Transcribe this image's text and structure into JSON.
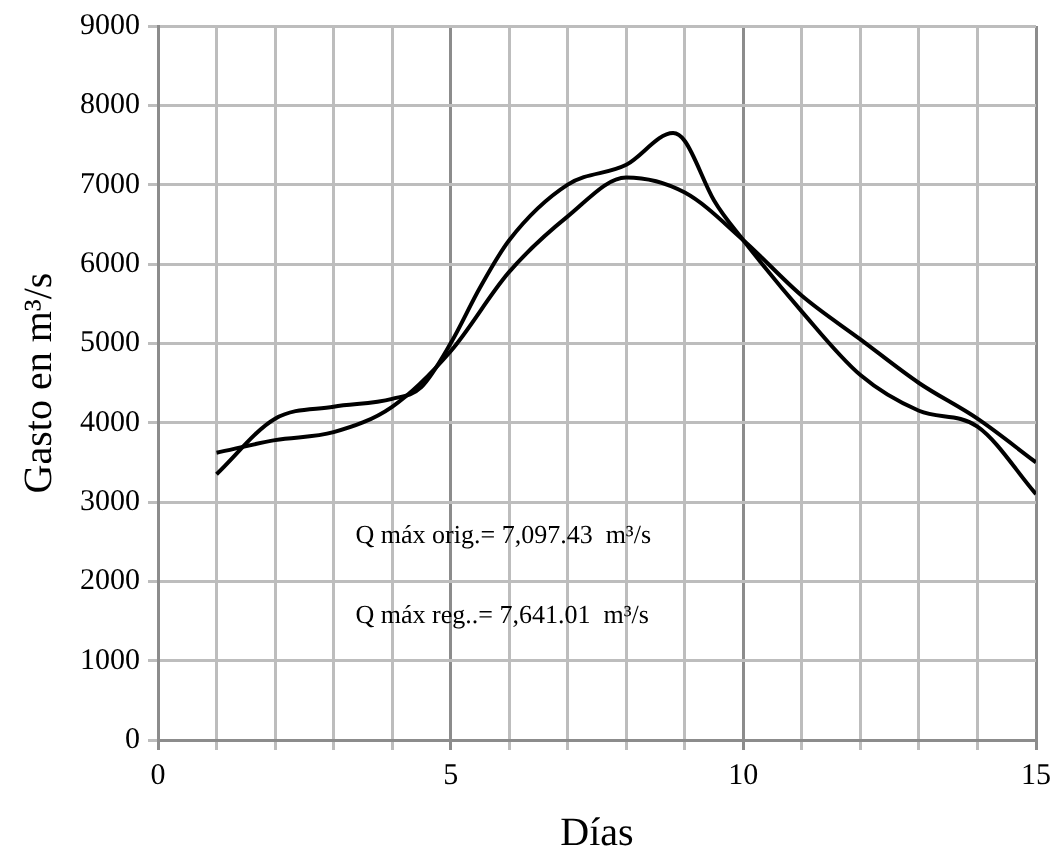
{
  "chart_data": {
    "type": "line",
    "xlabel": "Días",
    "ylabel": "Gasto en m³/s",
    "x": [
      1,
      2,
      3,
      4,
      4.5,
      5,
      5.5,
      6,
      7,
      8,
      8.8,
      9,
      9.5,
      10,
      11,
      12,
      13,
      14,
      15
    ],
    "series": [
      {
        "color": "#000000",
        "x": [
          1,
          2,
          3,
          4,
          5,
          6,
          7,
          8,
          9,
          10,
          11,
          12,
          13,
          14,
          15
        ],
        "values": [
          3620,
          3780,
          3880,
          4200,
          4900,
          5900,
          6600,
          7090,
          6900,
          6300,
          5600,
          5050,
          4500,
          4050,
          3500
        ]
      },
      {
        "color": "#000000",
        "values": [
          3350,
          4050,
          4200,
          4300,
          4450,
          5000,
          5700,
          6300,
          7000,
          7250,
          7650,
          7550,
          6800,
          6300,
          5400,
          4600,
          4150,
          3950,
          3100
        ]
      }
    ],
    "xlim": [
      0,
      15
    ],
    "ylim": [
      0,
      9000
    ],
    "xticks": [
      0,
      {
        "value": 1,
        "label": null
      },
      {
        "value": 2,
        "label": null
      },
      {
        "value": 3,
        "label": null
      },
      {
        "value": 4,
        "label": null
      },
      5,
      {
        "value": 6,
        "label": null
      },
      {
        "value": 7,
        "label": null
      },
      {
        "value": 8,
        "label": null
      },
      {
        "value": 9,
        "label": null
      },
      10,
      {
        "value": 11,
        "label": null
      },
      {
        "value": 12,
        "label": null
      },
      {
        "value": 13,
        "label": null
      },
      {
        "value": 14,
        "label": null
      },
      15
    ],
    "yticks": [
      0,
      1000,
      2000,
      3000,
      4000,
      5000,
      6000,
      7000,
      8000,
      9000
    ],
    "grid": true,
    "legend": false,
    "marker": "none",
    "line_style": "solid",
    "annotations": [
      "Q máx orig.= 7,097.43  m³/s",
      "Q máx reg..= 7,641.01  m³/s"
    ]
  }
}
